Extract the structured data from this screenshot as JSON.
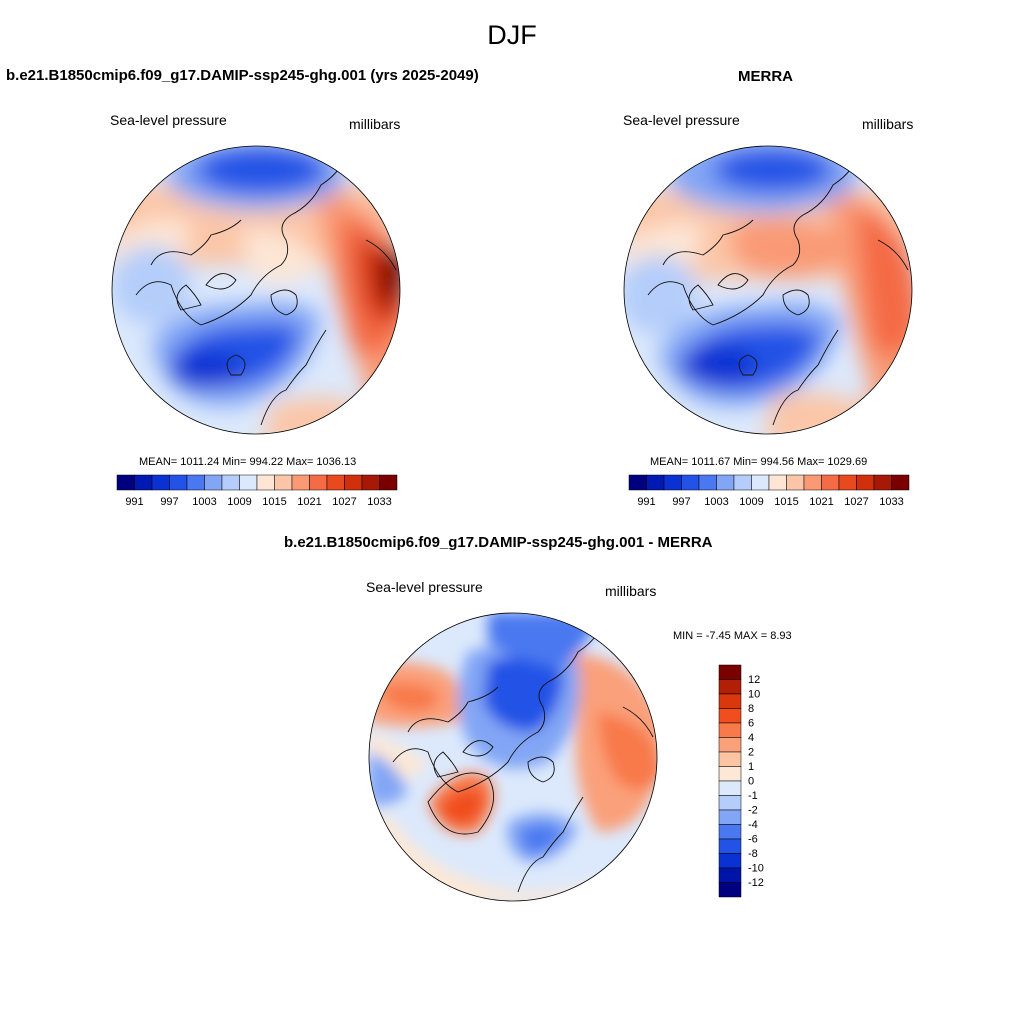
{
  "title": "DJF",
  "panels": [
    {
      "title": "b.e21.B1850cmip6.f09_g17.DAMIP-ssp245-ghg.001 (yrs 2025-2049)",
      "left_label": "Sea-level pressure",
      "right_label": "millibars",
      "stats": "MEAN= 1011.24  Min= 994.22  Max= 1036.13"
    },
    {
      "title": "MERRA",
      "left_label": "Sea-level pressure",
      "right_label": "millibars",
      "stats": "MEAN= 1011.67  Min= 994.56  Max= 1029.69"
    },
    {
      "title": "b.e21.B1850cmip6.f09_g17.DAMIP-ssp245-ghg.001 - MERRA",
      "left_label": "Sea-level pressure",
      "right_label": "millibars",
      "stats": "MIN =  -7.45 MAX =   8.93"
    }
  ],
  "colorbar_abs": {
    "labels": [
      "991",
      "997",
      "1003",
      "1009",
      "1015",
      "1021",
      "1027",
      "1033"
    ],
    "colors": [
      "#00007f",
      "#0019b2",
      "#0a32d2",
      "#2352e6",
      "#4a78f0",
      "#82a6f5",
      "#b4cdfa",
      "#dce9fc",
      "#fde6d5",
      "#fbc6a8",
      "#f99a75",
      "#f46b45",
      "#e84a1e",
      "#d0300c",
      "#a81806",
      "#7a0000"
    ]
  },
  "colorbar_diff": {
    "labels": [
      "12",
      "10",
      "8",
      "6",
      "4",
      "2",
      "1",
      "0",
      "-1",
      "-2",
      "-4",
      "-6",
      "-8",
      "-10",
      "-12"
    ],
    "colors": [
      "#7a0000",
      "#b21e06",
      "#d8380c",
      "#f04e1e",
      "#f8794a",
      "#faa07a",
      "#fbc4a2",
      "#fde8d6",
      "#dce9fc",
      "#b4cdfa",
      "#82a6f5",
      "#4a78f0",
      "#2352e6",
      "#0a32d2",
      "#0014aa",
      "#000080"
    ]
  }
}
